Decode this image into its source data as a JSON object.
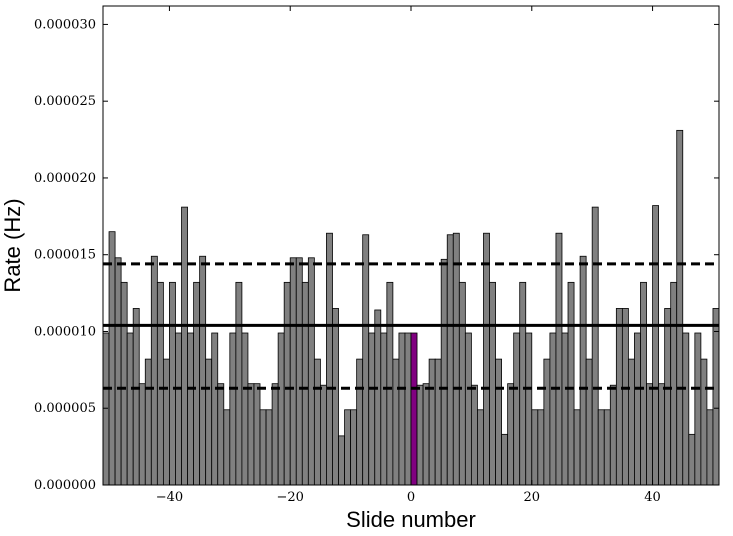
{
  "chart_data": {
    "type": "bar",
    "title": "",
    "xlabel": "Slide number",
    "ylabel": "Rate (Hz)",
    "xlim": [
      -51,
      51
    ],
    "ylim": [
      0,
      3.12e-05
    ],
    "x_ticks": [
      -40,
      -20,
      0,
      20,
      40
    ],
    "x_tick_labels": [
      "−40",
      "−20",
      "0",
      "20",
      "40"
    ],
    "y_ticks": [
      0,
      5e-06,
      1e-05,
      1.5e-05,
      2e-05,
      2.5e-05,
      3e-05
    ],
    "y_tick_labels": [
      "0.000000",
      "0.000005",
      "0.000010",
      "0.000015",
      "0.000020",
      "0.000025",
      "0.000030"
    ],
    "bar_color": "#808080",
    "highlight_color": "#800080",
    "highlight_x": 0,
    "x": [
      -51,
      -50,
      -49,
      -48,
      -47,
      -46,
      -45,
      -44,
      -43,
      -42,
      -41,
      -40,
      -39,
      -38,
      -37,
      -36,
      -35,
      -34,
      -33,
      -32,
      -31,
      -30,
      -29,
      -28,
      -27,
      -26,
      -25,
      -24,
      -23,
      -22,
      -21,
      -20,
      -19,
      -18,
      -17,
      -16,
      -15,
      -14,
      -13,
      -12,
      -11,
      -10,
      -9,
      -8,
      -7,
      -6,
      -5,
      -4,
      -3,
      -2,
      -1,
      0,
      1,
      2,
      3,
      4,
      5,
      6,
      7,
      8,
      9,
      10,
      11,
      12,
      13,
      14,
      15,
      16,
      17,
      18,
      19,
      20,
      21,
      22,
      23,
      24,
      25,
      26,
      27,
      28,
      29,
      30,
      31,
      32,
      33,
      34,
      35,
      36,
      37,
      38,
      39,
      40,
      41,
      42,
      43,
      44,
      45,
      46,
      47,
      48,
      49,
      50
    ],
    "values": [
      9.9e-06,
      1.65e-05,
      1.48e-05,
      1.32e-05,
      9.9e-06,
      1.15e-05,
      6.6e-06,
      8.2e-06,
      1.49e-05,
      1.32e-05,
      8.2e-06,
      1.32e-05,
      9.9e-06,
      1.81e-05,
      9.9e-06,
      1.32e-05,
      1.49e-05,
      8.2e-06,
      9.9e-06,
      6.6e-06,
      4.9e-06,
      9.9e-06,
      1.32e-05,
      9.9e-06,
      6.6e-06,
      6.6e-06,
      4.9e-06,
      4.9e-06,
      6.6e-06,
      9.9e-06,
      1.32e-05,
      1.48e-05,
      1.48e-05,
      1.32e-05,
      1.48e-05,
      8.2e-06,
      6.5e-06,
      1.64e-05,
      1.15e-05,
      3.2e-06,
      4.9e-06,
      4.9e-06,
      8.2e-06,
      1.63e-05,
      9.9e-06,
      1.14e-05,
      9.9e-06,
      1.32e-05,
      8.2e-06,
      9.9e-06,
      9.9e-06,
      9.9e-06,
      6.5e-06,
      6.6e-06,
      8.2e-06,
      8.2e-06,
      1.47e-05,
      1.63e-05,
      1.64e-05,
      1.32e-05,
      9.9e-06,
      6.5e-06,
      4.9e-06,
      1.64e-05,
      1.32e-05,
      8.2e-06,
      3.3e-06,
      6.6e-06,
      9.9e-06,
      1.32e-05,
      9.9e-06,
      4.9e-06,
      4.9e-06,
      8.2e-06,
      9.9e-06,
      1.64e-05,
      9.9e-06,
      1.32e-05,
      4.9e-06,
      1.49e-05,
      8.2e-06,
      1.81e-05,
      4.9e-06,
      4.9e-06,
      6.5e-06,
      1.15e-05,
      1.15e-05,
      8.2e-06,
      9.9e-06,
      1.32e-05,
      6.6e-06,
      1.82e-05,
      6.6e-06,
      1.15e-05,
      1.32e-05,
      2.31e-05,
      9.9e-06,
      3.3e-06,
      9.9e-06,
      8.2e-06,
      4.9e-06,
      1.15e-05
    ],
    "hlines": [
      {
        "y": 1.04e-05,
        "style": "solid"
      },
      {
        "y": 1.44e-05,
        "style": "dashed"
      },
      {
        "y": 6.3e-06,
        "style": "dashed"
      }
    ]
  }
}
